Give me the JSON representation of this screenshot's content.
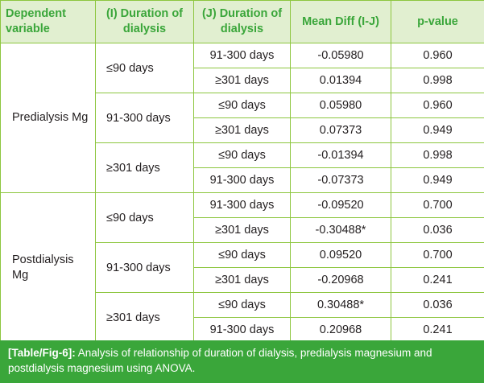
{
  "table": {
    "headers": [
      "Dependent variable",
      "(I) Duration of dialysis",
      "(J) Duration of dialysis",
      "Mean Diff (I-J)",
      "p-value"
    ],
    "groups": [
      {
        "name": "Predialysis Mg",
        "subgroups": [
          {
            "i": "≤90 days",
            "rows": [
              {
                "j": "91-300 days",
                "diff": "-0.05980",
                "p": "0.960"
              },
              {
                "j": "≥301 days",
                "diff": "0.01394",
                "p": "0.998"
              }
            ]
          },
          {
            "i": "91-300 days",
            "rows": [
              {
                "j": "≤90 days",
                "diff": "0.05980",
                "p": "0.960"
              },
              {
                "j": "≥301 days",
                "diff": "0.07373",
                "p": "0.949"
              }
            ]
          },
          {
            "i": "≥301 days",
            "rows": [
              {
                "j": "≤90 days",
                "diff": "-0.01394",
                "p": "0.998"
              },
              {
                "j": "91-300 days",
                "diff": "-0.07373",
                "p": "0.949"
              }
            ]
          }
        ]
      },
      {
        "name": "Postdialysis Mg",
        "subgroups": [
          {
            "i": "≤90 days",
            "rows": [
              {
                "j": "91-300 days",
                "diff": "-0.09520",
                "p": "0.700"
              },
              {
                "j": "≥301 days",
                "diff": "-0.30488*",
                "p": "0.036"
              }
            ]
          },
          {
            "i": "91-300 days",
            "rows": [
              {
                "j": "≤90 days",
                "diff": "0.09520",
                "p": "0.700"
              },
              {
                "j": "≥301 days",
                "diff": "-0.20968",
                "p": "0.241"
              }
            ]
          },
          {
            "i": "≥301 days",
            "rows": [
              {
                "j": "≤90 days",
                "diff": "0.30488*",
                "p": "0.036"
              },
              {
                "j": "91-300 days",
                "diff": "0.20968",
                "p": "0.241"
              }
            ]
          }
        ]
      }
    ]
  },
  "caption": {
    "label": "[Table/Fig-6]:",
    "text": " Analysis of relationship of duration of dialysis, predialysis magnesium and postdialysis magnesium using ANOVA."
  },
  "colors": {
    "accent": "#3aa63a",
    "header_bg": "#e1efd0",
    "border": "#8dc63f"
  }
}
